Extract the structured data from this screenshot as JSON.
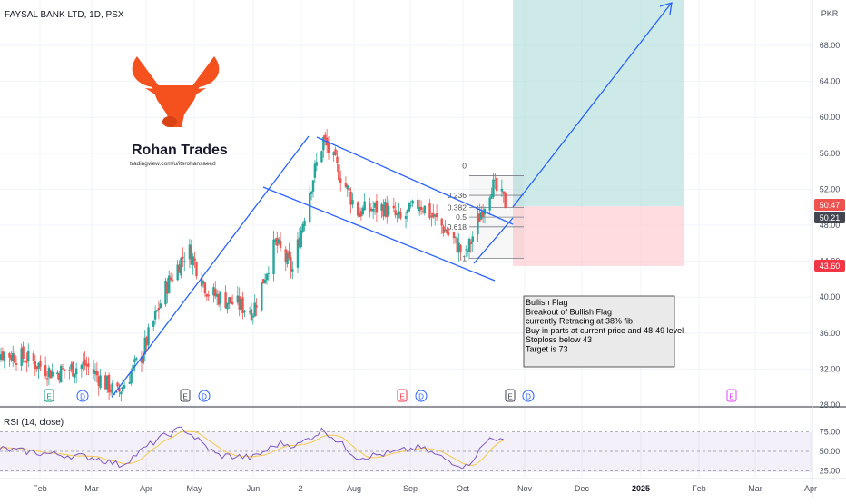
{
  "header": {
    "title": "FAYSAL BANK LTD, 1D, PSX",
    "currency": "PKR"
  },
  "watermark": {
    "brand": "Rohan Trades",
    "url": "tradingview.com/u/itsrohansaeed"
  },
  "colors": {
    "up": "#26a69a",
    "down": "#ef5350",
    "trendline": "#2962ff",
    "rsi": "#7e57c2",
    "rsi_ma": "#f7c948",
    "target_zone": "#b2dfdb",
    "stop_zone": "#ffcdd2",
    "logo": "#f4511e"
  },
  "price_labels": {
    "current": "50.47",
    "fib_level": "50.21",
    "stop": "43.60"
  },
  "fib_labels": [
    "0",
    "0.236",
    "0.382",
    "0.5",
    "0.618",
    "1"
  ],
  "note": {
    "lines": [
      "Bullish Flag",
      "Breakout of Bullish Flag",
      "currently Retracing at 38% fib",
      "Buy in parts at current price and 48-49 level",
      "Stoploss below 43",
      "Target is 73"
    ]
  },
  "events": [
    {
      "letter": "E",
      "type": "earnings-positive"
    },
    {
      "letter": "D",
      "type": "dividend"
    },
    {
      "letter": "E",
      "type": "earnings"
    },
    {
      "letter": "D",
      "type": "dividend"
    },
    {
      "letter": "E",
      "type": "earnings-negative"
    },
    {
      "letter": "D",
      "type": "dividend"
    },
    {
      "letter": "E",
      "type": "earnings"
    },
    {
      "letter": "D",
      "type": "dividend"
    },
    {
      "letter": "E",
      "type": "earnings-future"
    }
  ],
  "rsi": {
    "title": "RSI (14, close)",
    "ticks": [
      "75.00",
      "50.00",
      "25.00"
    ]
  },
  "chart_data": {
    "type": "candlestick",
    "symbol": "FAYSAL BANK LTD",
    "interval": "1D",
    "exchange": "PSX",
    "y_ticks": [
      28,
      32,
      36,
      40,
      44,
      48,
      52,
      56,
      60,
      64,
      68
    ],
    "y_tick_labels": [
      "28.00",
      "32.00",
      "36.00",
      "40.00",
      "44.00",
      "48.00",
      "52.00",
      "56.00",
      "60.00",
      "64.00",
      "68.00"
    ],
    "ylim": [
      28,
      69.5
    ],
    "x_tick_labels": [
      "Feb",
      "Mar",
      "Apr",
      "May",
      "Jun",
      "2",
      "Aug",
      "Sep",
      "Oct",
      "Nov",
      "Dec",
      "2025",
      "Feb",
      "Mar",
      "Apr"
    ],
    "bold_x_ticks": [
      "2025"
    ],
    "last_price": 50.47,
    "stop_loss": 43.6,
    "fib_retracement": {
      "high": 53.5,
      "low": 44.3,
      "levels": [
        0,
        0.236,
        0.382,
        0.5,
        0.618,
        1
      ]
    },
    "price_path_anchors": [
      {
        "date": "2024-01-01",
        "price": 34.2
      },
      {
        "date": "2024-01-25",
        "price": 33.2
      },
      {
        "date": "2024-02-10",
        "price": 31.5
      },
      {
        "date": "2024-02-28",
        "price": 32.5
      },
      {
        "date": "2024-03-18",
        "price": 29.2
      },
      {
        "date": "2024-04-01",
        "price": 33.5
      },
      {
        "date": "2024-04-15",
        "price": 41
      },
      {
        "date": "2024-04-28",
        "price": 45.5
      },
      {
        "date": "2024-05-10",
        "price": 40.5
      },
      {
        "date": "2024-05-22",
        "price": 39.5
      },
      {
        "date": "2024-06-05",
        "price": 38.5
      },
      {
        "date": "2024-06-18",
        "price": 46
      },
      {
        "date": "2024-06-28",
        "price": 43
      },
      {
        "date": "2024-07-08",
        "price": 52
      },
      {
        "date": "2024-07-16",
        "price": 57.5
      },
      {
        "date": "2024-07-26",
        "price": 53.5
      },
      {
        "date": "2024-08-05",
        "price": 49.5
      },
      {
        "date": "2024-08-20",
        "price": 50
      },
      {
        "date": "2024-08-30",
        "price": 48.5
      },
      {
        "date": "2024-09-10",
        "price": 50.5
      },
      {
        "date": "2024-09-25",
        "price": 47.5
      },
      {
        "date": "2024-10-07",
        "price": 44.5
      },
      {
        "date": "2024-10-14",
        "price": 48.5
      },
      {
        "date": "2024-10-22",
        "price": 52.5
      },
      {
        "date": "2024-10-30",
        "price": 50.47
      }
    ],
    "rsi_path_anchors": [
      {
        "date": "2024-01-01",
        "rsi": 55
      },
      {
        "date": "2024-02-01",
        "rsi": 48
      },
      {
        "date": "2024-03-05",
        "rsi": 42
      },
      {
        "date": "2024-03-20",
        "rsi": 32
      },
      {
        "date": "2024-04-10",
        "rsi": 65
      },
      {
        "date": "2024-04-25",
        "rsi": 80
      },
      {
        "date": "2024-05-15",
        "rsi": 45
      },
      {
        "date": "2024-06-05",
        "rsi": 42
      },
      {
        "date": "2024-06-20",
        "rsi": 60
      },
      {
        "date": "2024-07-01",
        "rsi": 58
      },
      {
        "date": "2024-07-16",
        "rsi": 78
      },
      {
        "date": "2024-08-05",
        "rsi": 42
      },
      {
        "date": "2024-08-25",
        "rsi": 48
      },
      {
        "date": "2024-09-10",
        "rsi": 55
      },
      {
        "date": "2024-09-25",
        "rsi": 40
      },
      {
        "date": "2024-10-07",
        "rsi": 30
      },
      {
        "date": "2024-10-22",
        "rsi": 70
      },
      {
        "date": "2024-10-30",
        "rsi": 60
      }
    ]
  }
}
